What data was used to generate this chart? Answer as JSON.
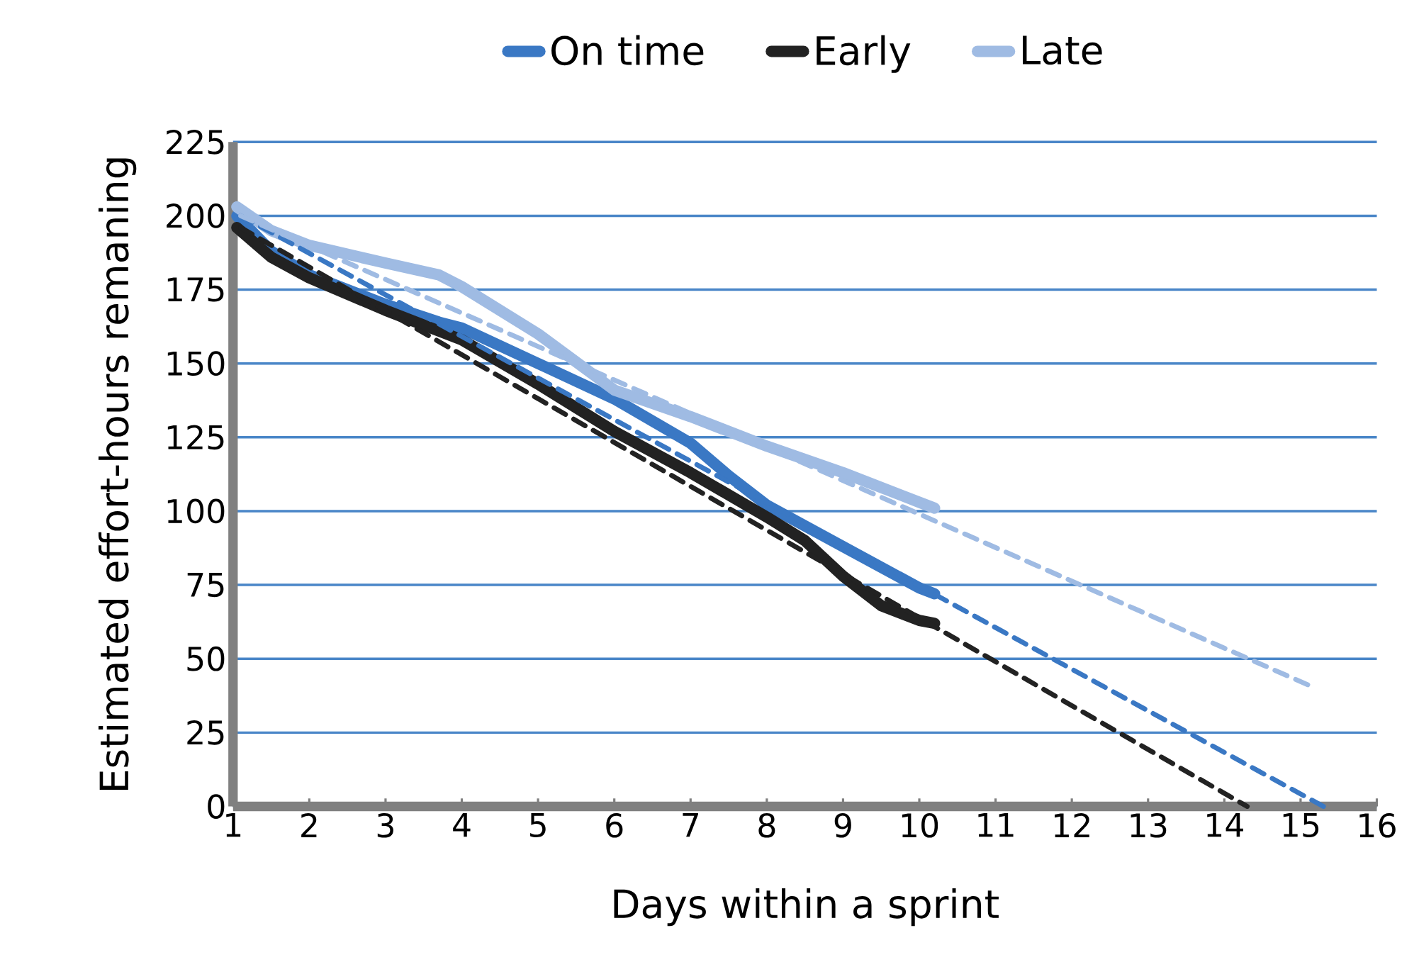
{
  "chart_data": {
    "type": "line",
    "xlabel": "Days within a sprint",
    "ylabel": "Estimated effort-hours remaning",
    "xlim": [
      1,
      16
    ],
    "xticks": [
      1,
      2,
      3,
      4,
      5,
      6,
      7,
      8,
      9,
      10,
      11,
      12,
      13,
      14,
      15,
      16
    ],
    "ylim": [
      0,
      225
    ],
    "yticks": [
      0,
      25,
      50,
      75,
      100,
      125,
      150,
      175,
      200,
      225
    ],
    "grid": "y",
    "legend": "top",
    "marker": "none",
    "line_style": "solid",
    "series": [
      {
        "name": "On time",
        "color": "#3a78c4",
        "x": [
          1.05,
          1.5,
          2,
          3,
          3.7,
          4,
          5,
          6,
          7,
          7.5,
          8,
          9,
          10,
          10.2
        ],
        "values": [
          200,
          188,
          180,
          170,
          164,
          162,
          150,
          138,
          123,
          112,
          102,
          88,
          74,
          72
        ]
      },
      {
        "name": "Early",
        "color": "#222222",
        "x": [
          1.05,
          1.5,
          2,
          3,
          4,
          5,
          6,
          7,
          8,
          8.5,
          9,
          9.5,
          10,
          10.2
        ],
        "values": [
          196,
          186,
          179,
          168,
          158,
          143,
          127,
          113,
          98,
          90,
          78,
          68,
          63,
          62
        ]
      },
      {
        "name": "Late",
        "color": "#9fbbe3",
        "x": [
          1.05,
          1.5,
          2,
          3,
          3.7,
          4,
          5,
          6,
          7,
          8,
          9,
          10,
          10.2
        ],
        "values": [
          203,
          195,
          190,
          184,
          180,
          176,
          160,
          141,
          132,
          122,
          113,
          103,
          101
        ]
      },
      {
        "color": "#3a78c4",
        "line_style": "dashed",
        "x": [
          1.1,
          15.3
        ],
        "values": [
          200,
          0
        ]
      },
      {
        "color": "#222222",
        "line_style": "dashed",
        "x": [
          1.1,
          14.3
        ],
        "values": [
          196,
          0
        ]
      },
      {
        "color": "#9fbbe3",
        "line_style": "dashed",
        "x": [
          1.1,
          15.2
        ],
        "values": [
          200,
          40
        ]
      }
    ]
  }
}
